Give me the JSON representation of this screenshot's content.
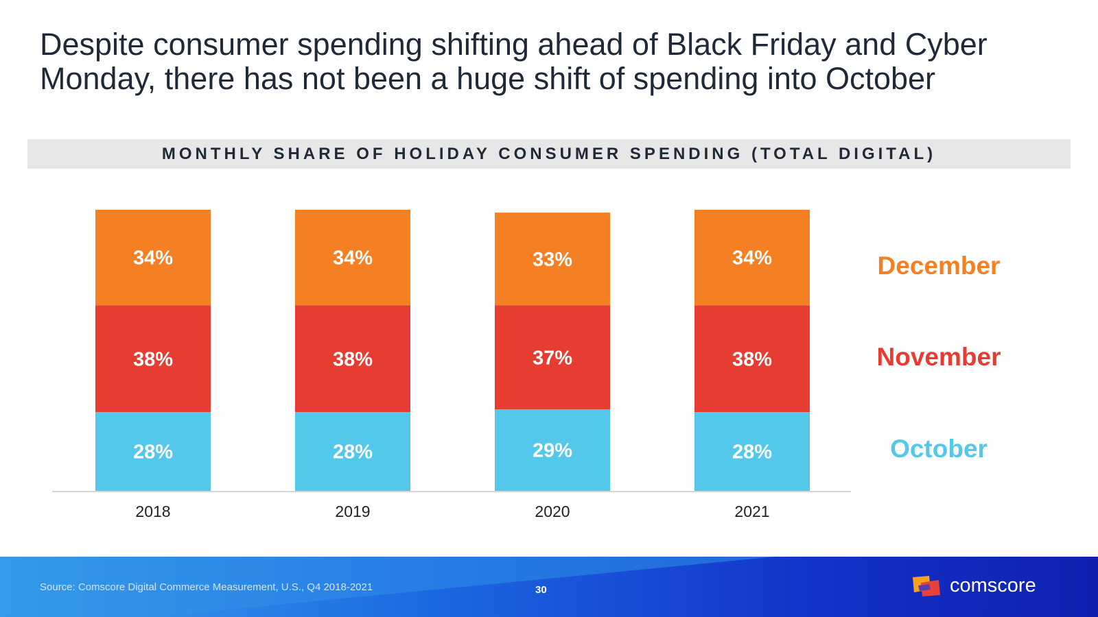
{
  "title": "Despite consumer spending shifting ahead of Black Friday and Cyber Monday, there has not been a huge shift of spending into October",
  "banner": "MONTHLY SHARE OF HOLIDAY CONSUMER SPENDING (TOTAL DIGITAL)",
  "chart_data": {
    "type": "bar",
    "stacked": true,
    "categories": [
      "2018",
      "2019",
      "2020",
      "2021"
    ],
    "series": [
      {
        "name": "October",
        "color": "#53c8ea",
        "values": [
          28,
          28,
          29,
          28
        ],
        "labels": [
          "28%",
          "28%",
          "29%",
          "28%"
        ]
      },
      {
        "name": "November",
        "color": "#e63c31",
        "values": [
          38,
          38,
          37,
          38
        ],
        "labels": [
          "38%",
          "38%",
          "37%",
          "38%"
        ]
      },
      {
        "name": "December",
        "color": "#f58024",
        "values": [
          34,
          34,
          33,
          34
        ],
        "labels": [
          "34%",
          "34%",
          "33%",
          "34%"
        ]
      }
    ],
    "ylim": [
      0,
      100
    ],
    "legend": [
      "December",
      "November",
      "October"
    ],
    "legend_position": "right"
  },
  "footer": {
    "source": "Source: Comscore Digital Commerce Measurement, U.S., Q4 2018-2021",
    "page_number": "30",
    "brand": "comscore"
  }
}
